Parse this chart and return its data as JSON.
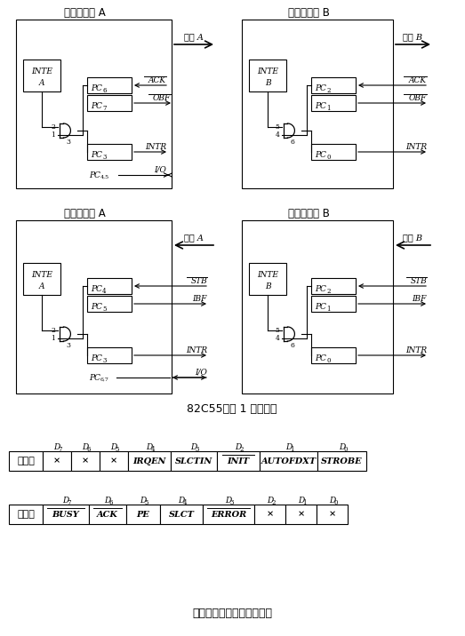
{
  "title_top": "82C55方式 1 内部结构",
  "title_bottom": "打印机控制字和状态字格式",
  "ctrl_label": "控制字",
  "stat_label": "状态字",
  "diagram_tl_title": "方式１端口 A",
  "diagram_tr_title": "方式１端口 B",
  "diagram_bl_title": "方式１端口 A",
  "diagram_br_title": "方式１端口 B",
  "port_A": "端口 A",
  "port_B": "端口 B",
  "ctrl_header": [
    "D7",
    "D6",
    "D5",
    "D4",
    "D3",
    "D2",
    "D1",
    "D0"
  ],
  "ctrl_cells": [
    "×",
    "×",
    "×",
    "IRQEN",
    "SLCTIN",
    "INIT",
    "AUTOFDXT",
    "STROBE"
  ],
  "ctrl_overline": [
    false,
    false,
    false,
    false,
    false,
    true,
    false,
    false
  ],
  "stat_header": [
    "D7",
    "D6",
    "D5",
    "D4",
    "D3",
    "D2",
    "D1",
    "D0"
  ],
  "stat_cells": [
    "BUSY",
    "ACK",
    "PE",
    "SLCT",
    "ERROR",
    "×",
    "×",
    "×"
  ],
  "stat_overline": [
    true,
    true,
    false,
    false,
    true,
    false,
    false,
    false
  ],
  "background": "#ffffff"
}
